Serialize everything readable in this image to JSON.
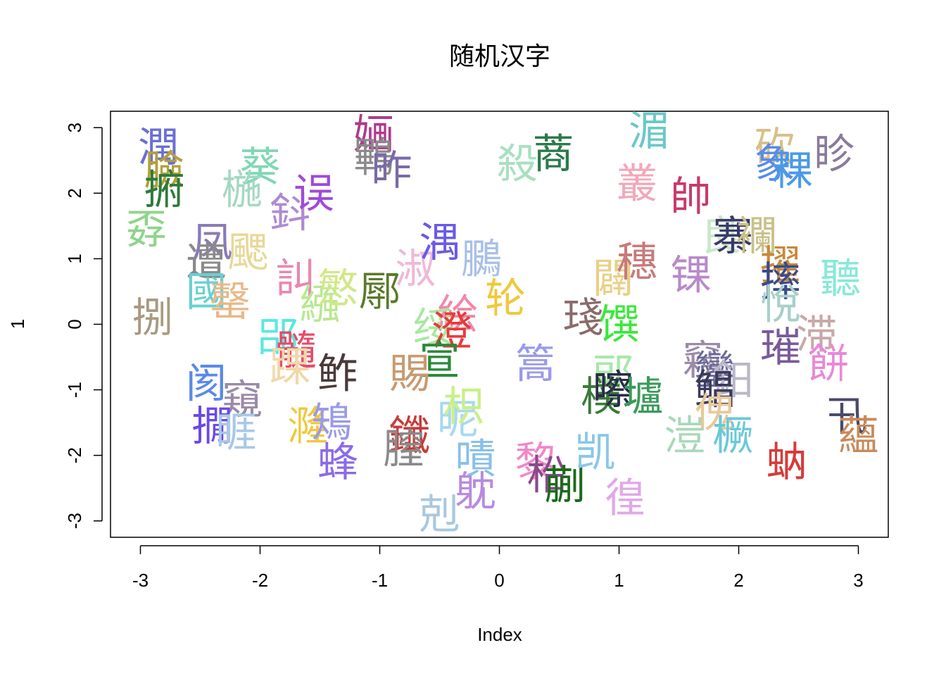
{
  "chart_data": {
    "type": "scatter",
    "title": "随机汉字",
    "xlabel": "Index",
    "ylabel": "1",
    "xlim": [
      -3.25,
      3.25
    ],
    "ylim": [
      -3.25,
      3.25
    ],
    "x_ticks": [
      -3,
      -2,
      -1,
      0,
      1,
      2,
      3
    ],
    "y_ticks": [
      -3,
      -2,
      -1,
      0,
      1,
      2,
      3
    ],
    "x_tick_labels": [
      "-3",
      "-2",
      "-1",
      "0",
      "1",
      "2",
      "3"
    ],
    "y_tick_labels": [
      "-3",
      "-2",
      "-1",
      "0",
      "1",
      "2",
      "3"
    ],
    "grid": false,
    "points": [
      {
        "label": "潤",
        "x": -2.85,
        "y": 2.7,
        "color": "#6a6fd4"
      },
      {
        "label": "臉",
        "x": -2.8,
        "y": 2.35,
        "color": "#b3a03a"
      },
      {
        "label": "捬",
        "x": -2.8,
        "y": 2.05,
        "color": "#2e7a3a"
      },
      {
        "label": "孬",
        "x": -2.95,
        "y": 1.45,
        "color": "#8fd48a"
      },
      {
        "label": "葵",
        "x": -2.0,
        "y": 2.4,
        "color": "#7ed8b4"
      },
      {
        "label": "椸",
        "x": -2.15,
        "y": 2.05,
        "color": "#a3d9c0"
      },
      {
        "label": "鈄",
        "x": -1.75,
        "y": 1.7,
        "color": "#b08ad0"
      },
      {
        "label": "误",
        "x": -1.55,
        "y": 2.0,
        "color": "#a04ad8"
      },
      {
        "label": "凤",
        "x": -2.4,
        "y": 1.25,
        "color": "#8a7ab8"
      },
      {
        "label": "遭",
        "x": -2.45,
        "y": 0.95,
        "color": "#8a8a8a"
      },
      {
        "label": "颸",
        "x": -2.1,
        "y": 1.1,
        "color": "#e8d898"
      },
      {
        "label": "國",
        "x": -2.45,
        "y": 0.5,
        "color": "#6ad0d0"
      },
      {
        "label": "罄",
        "x": -2.25,
        "y": 0.35,
        "color": "#e8b888"
      },
      {
        "label": "訆",
        "x": -1.7,
        "y": 0.7,
        "color": "#e888b0"
      },
      {
        "label": "繈",
        "x": -1.5,
        "y": 0.3,
        "color": "#b8e890"
      },
      {
        "label": "慜",
        "x": -1.35,
        "y": 0.55,
        "color": "#d0e888"
      },
      {
        "label": "捌",
        "x": -2.9,
        "y": 0.1,
        "color": "#a89a80"
      },
      {
        "label": "郘",
        "x": -1.85,
        "y": -0.2,
        "color": "#5ae8e0"
      },
      {
        "label": "髓",
        "x": -1.7,
        "y": -0.4,
        "color": "#e84a6a"
      },
      {
        "label": "踝",
        "x": -1.75,
        "y": -0.65,
        "color": "#f0d8a8"
      },
      {
        "label": "鲊",
        "x": -1.35,
        "y": -0.75,
        "color": "#4a3a3a"
      },
      {
        "label": "阂",
        "x": -2.45,
        "y": -0.9,
        "color": "#5a8ae8"
      },
      {
        "label": "窺",
        "x": -2.15,
        "y": -1.15,
        "color": "#9a8aa8"
      },
      {
        "label": "撊",
        "x": -2.4,
        "y": -1.55,
        "color": "#6a4ae8"
      },
      {
        "label": "睚",
        "x": -2.2,
        "y": -1.65,
        "color": "#a8c8e8"
      },
      {
        "label": "漋",
        "x": -1.6,
        "y": -1.55,
        "color": "#f0c83a"
      },
      {
        "label": "鴙",
        "x": -1.4,
        "y": -1.5,
        "color": "#9a9ae8"
      },
      {
        "label": "蜂",
        "x": -1.35,
        "y": -2.1,
        "color": "#8a6ae8"
      },
      {
        "label": "婳",
        "x": -1.05,
        "y": 2.9,
        "color": "#b03a8a"
      },
      {
        "label": "鷝",
        "x": -1.05,
        "y": 2.55,
        "color": "#8a8a8a"
      },
      {
        "label": "昨",
        "x": -0.9,
        "y": 2.35,
        "color": "#7a6aa8"
      },
      {
        "label": "鄏",
        "x": -1.0,
        "y": 0.5,
        "color": "#5a7a2a"
      },
      {
        "label": "淑",
        "x": -0.7,
        "y": 0.85,
        "color": "#f0b8d8"
      },
      {
        "label": "湡",
        "x": -0.5,
        "y": 1.25,
        "color": "#6a5ae8"
      },
      {
        "label": "鵩",
        "x": -0.15,
        "y": 1.0,
        "color": "#a8c0e8"
      },
      {
        "label": "轮",
        "x": 0.05,
        "y": 0.4,
        "color": "#f0c83a"
      },
      {
        "label": "絵",
        "x": -0.35,
        "y": 0.15,
        "color": "#f088a8"
      },
      {
        "label": "绥",
        "x": -0.55,
        "y": -0.05,
        "color": "#a8e8a0"
      },
      {
        "label": "澄",
        "x": -0.4,
        "y": -0.1,
        "color": "#e83a3a"
      },
      {
        "label": "宣",
        "x": -0.5,
        "y": -0.55,
        "color": "#2a8a3a"
      },
      {
        "label": "賜",
        "x": -0.75,
        "y": -0.75,
        "color": "#c89a70"
      },
      {
        "label": "昵",
        "x": -0.35,
        "y": -1.45,
        "color": "#a8d8f0"
      },
      {
        "label": "枳",
        "x": -0.3,
        "y": -1.25,
        "color": "#c8f088"
      },
      {
        "label": "鑯",
        "x": -0.75,
        "y": -1.7,
        "color": "#c83a3a"
      },
      {
        "label": "膣",
        "x": -0.8,
        "y": -1.9,
        "color": "#8a8a8a"
      },
      {
        "label": "嘖",
        "x": -0.2,
        "y": -2.05,
        "color": "#88c0e8"
      },
      {
        "label": "躭",
        "x": -0.2,
        "y": -2.55,
        "color": "#b88ae0"
      },
      {
        "label": "剋",
        "x": -0.5,
        "y": -2.9,
        "color": "#a8c8e0"
      },
      {
        "label": "殺",
        "x": 0.15,
        "y": 2.45,
        "color": "#a8e0c0"
      },
      {
        "label": "蔏",
        "x": 0.45,
        "y": 2.6,
        "color": "#2a7a4a"
      },
      {
        "label": "篙",
        "x": 0.3,
        "y": -0.6,
        "color": "#9a9ae8"
      },
      {
        "label": "琖",
        "x": 0.7,
        "y": 0.1,
        "color": "#8a6a6a"
      },
      {
        "label": "馔",
        "x": 1.0,
        "y": 0.0,
        "color": "#3ae83a"
      },
      {
        "label": "闢",
        "x": 0.95,
        "y": 0.7,
        "color": "#e8d088"
      },
      {
        "label": "穗",
        "x": 1.15,
        "y": 0.95,
        "color": "#c87a7a"
      },
      {
        "label": "郖",
        "x": 0.95,
        "y": -0.75,
        "color": "#a8e8a8"
      },
      {
        "label": "樸",
        "x": 0.85,
        "y": -1.1,
        "color": "#3a7a3a"
      },
      {
        "label": "嚓",
        "x": 0.95,
        "y": -1.0,
        "color": "#2a2a4a"
      },
      {
        "label": "壚",
        "x": 1.2,
        "y": -1.1,
        "color": "#3a9a5a"
      },
      {
        "label": "黎",
        "x": 0.3,
        "y": -2.1,
        "color": "#f088c8"
      },
      {
        "label": "柗",
        "x": 0.4,
        "y": -2.3,
        "color": "#8a4a8a"
      },
      {
        "label": "蒯",
        "x": 0.55,
        "y": -2.45,
        "color": "#1a6a1a"
      },
      {
        "label": "凯",
        "x": 0.8,
        "y": -1.95,
        "color": "#88c8e8"
      },
      {
        "label": "徨",
        "x": 1.05,
        "y": -2.65,
        "color": "#e0a8e8"
      },
      {
        "label": "湄",
        "x": 1.25,
        "y": 2.95,
        "color": "#6ac8c8"
      },
      {
        "label": "叢",
        "x": 1.15,
        "y": 2.15,
        "color": "#f0a8b8"
      },
      {
        "label": "帥",
        "x": 1.6,
        "y": 1.95,
        "color": "#c83a6a"
      },
      {
        "label": "锞",
        "x": 1.6,
        "y": 0.75,
        "color": "#b88ac8"
      },
      {
        "label": "良",
        "x": 1.85,
        "y": 1.35,
        "color": "#c8e8c8"
      },
      {
        "label": "寨",
        "x": 1.95,
        "y": 1.35,
        "color": "#3a3a6a"
      },
      {
        "label": "襴",
        "x": 2.15,
        "y": 1.35,
        "color": "#c8c088"
      },
      {
        "label": "竊",
        "x": 1.7,
        "y": -0.55,
        "color": "#9a8aa8"
      },
      {
        "label": "鑾",
        "x": 1.8,
        "y": -0.7,
        "color": "#6a6a9a"
      },
      {
        "label": "鈤",
        "x": 1.95,
        "y": -0.85,
        "color": "#b8b8c8"
      },
      {
        "label": "鲳",
        "x": 1.8,
        "y": -1.0,
        "color": "#3a3a5a"
      },
      {
        "label": "傀",
        "x": 1.8,
        "y": -1.35,
        "color": "#e8c898"
      },
      {
        "label": "溰",
        "x": 1.55,
        "y": -1.7,
        "color": "#a8d8b8"
      },
      {
        "label": "橛",
        "x": 1.95,
        "y": -1.7,
        "color": "#6ac8d8"
      },
      {
        "label": "砍",
        "x": 2.3,
        "y": 2.7,
        "color": "#d8c088"
      },
      {
        "label": "象",
        "x": 2.3,
        "y": 2.45,
        "color": "#5a8ae8"
      },
      {
        "label": "粿",
        "x": 2.45,
        "y": 2.35,
        "color": "#4a9ae8"
      },
      {
        "label": "眕",
        "x": 2.8,
        "y": 2.6,
        "color": "#8a7a9a"
      },
      {
        "label": "擢",
        "x": 2.35,
        "y": 0.9,
        "color": "#c8883a"
      },
      {
        "label": "摔",
        "x": 2.35,
        "y": 0.65,
        "color": "#3a4a8a"
      },
      {
        "label": "悅",
        "x": 2.35,
        "y": 0.3,
        "color": "#a8d0c8"
      },
      {
        "label": "聽",
        "x": 2.85,
        "y": 0.7,
        "color": "#88e8d8"
      },
      {
        "label": "璀",
        "x": 2.35,
        "y": -0.35,
        "color": "#7a5a9a"
      },
      {
        "label": "滞",
        "x": 2.65,
        "y": -0.15,
        "color": "#c8a8a8"
      },
      {
        "label": "餅",
        "x": 2.75,
        "y": -0.6,
        "color": "#e888d8"
      },
      {
        "label": "蚋",
        "x": 2.4,
        "y": -2.1,
        "color": "#d83a3a"
      },
      {
        "label": "卂",
        "x": 2.9,
        "y": -1.4,
        "color": "#4a4a6a"
      },
      {
        "label": "蘊",
        "x": 3.0,
        "y": -1.7,
        "color": "#c88a5a"
      }
    ]
  }
}
